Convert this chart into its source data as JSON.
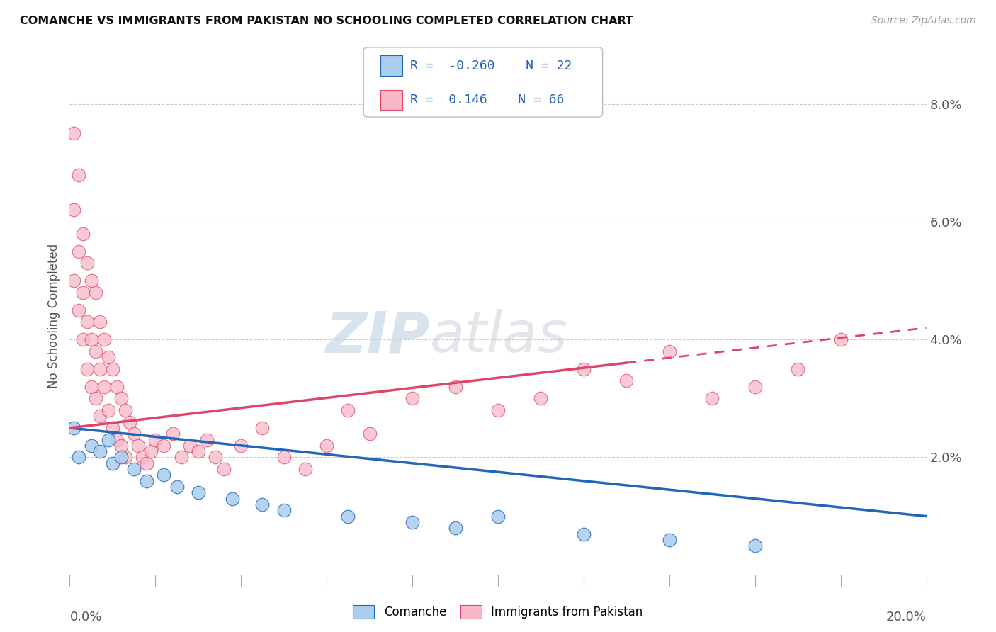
{
  "title": "COMANCHE VS IMMIGRANTS FROM PAKISTAN NO SCHOOLING COMPLETED CORRELATION CHART",
  "source": "Source: ZipAtlas.com",
  "ylabel": "No Schooling Completed",
  "x_min": 0.0,
  "x_max": 0.2,
  "y_min": 0.0,
  "y_max": 0.088,
  "yticks": [
    0.0,
    0.02,
    0.04,
    0.06,
    0.08
  ],
  "ytick_labels": [
    "",
    "2.0%",
    "4.0%",
    "6.0%",
    "8.0%"
  ],
  "comanche_color": "#aaccee",
  "pakistan_color": "#f8b8c8",
  "comanche_line_color": "#2266bb",
  "pakistan_line_color": "#e04468",
  "R_comanche": -0.26,
  "N_comanche": 22,
  "R_pakistan": 0.146,
  "N_pakistan": 66,
  "legend_label_comanche": "Comanche",
  "legend_label_pakistan": "Immigrants from Pakistan",
  "watermark_zip": "ZIP",
  "watermark_atlas": "atlas",
  "background_color": "#ffffff",
  "grid_color": "#cccccc",
  "comanche_x": [
    0.001,
    0.002,
    0.005,
    0.007,
    0.009,
    0.01,
    0.012,
    0.015,
    0.018,
    0.022,
    0.025,
    0.03,
    0.038,
    0.045,
    0.05,
    0.065,
    0.08,
    0.09,
    0.1,
    0.12,
    0.14,
    0.16
  ],
  "comanche_y": [
    0.025,
    0.02,
    0.022,
    0.021,
    0.023,
    0.019,
    0.02,
    0.018,
    0.016,
    0.017,
    0.015,
    0.014,
    0.013,
    0.012,
    0.011,
    0.01,
    0.009,
    0.008,
    0.01,
    0.007,
    0.006,
    0.005
  ],
  "pakistan_x": [
    0.001,
    0.001,
    0.001,
    0.002,
    0.002,
    0.002,
    0.003,
    0.003,
    0.003,
    0.004,
    0.004,
    0.004,
    0.005,
    0.005,
    0.005,
    0.006,
    0.006,
    0.006,
    0.007,
    0.007,
    0.007,
    0.008,
    0.008,
    0.009,
    0.009,
    0.01,
    0.01,
    0.011,
    0.011,
    0.012,
    0.012,
    0.013,
    0.013,
    0.014,
    0.015,
    0.016,
    0.017,
    0.018,
    0.019,
    0.02,
    0.022,
    0.024,
    0.026,
    0.028,
    0.03,
    0.032,
    0.034,
    0.036,
    0.04,
    0.045,
    0.05,
    0.055,
    0.06,
    0.065,
    0.07,
    0.08,
    0.09,
    0.1,
    0.11,
    0.12,
    0.13,
    0.14,
    0.15,
    0.16,
    0.17,
    0.18
  ],
  "pakistan_y": [
    0.075,
    0.062,
    0.05,
    0.068,
    0.055,
    0.045,
    0.058,
    0.048,
    0.04,
    0.053,
    0.043,
    0.035,
    0.05,
    0.04,
    0.032,
    0.048,
    0.038,
    0.03,
    0.043,
    0.035,
    0.027,
    0.04,
    0.032,
    0.037,
    0.028,
    0.035,
    0.025,
    0.032,
    0.023,
    0.03,
    0.022,
    0.028,
    0.02,
    0.026,
    0.024,
    0.022,
    0.02,
    0.019,
    0.021,
    0.023,
    0.022,
    0.024,
    0.02,
    0.022,
    0.021,
    0.023,
    0.02,
    0.018,
    0.022,
    0.025,
    0.02,
    0.018,
    0.022,
    0.028,
    0.024,
    0.03,
    0.032,
    0.028,
    0.03,
    0.035,
    0.033,
    0.038,
    0.03,
    0.032,
    0.035,
    0.04
  ],
  "comanche_trend_x": [
    0.0,
    0.2
  ],
  "comanche_trend_y": [
    0.025,
    0.01
  ],
  "pakistan_trend_x": [
    0.0,
    0.2
  ],
  "pakistan_trend_y": [
    0.025,
    0.042
  ]
}
